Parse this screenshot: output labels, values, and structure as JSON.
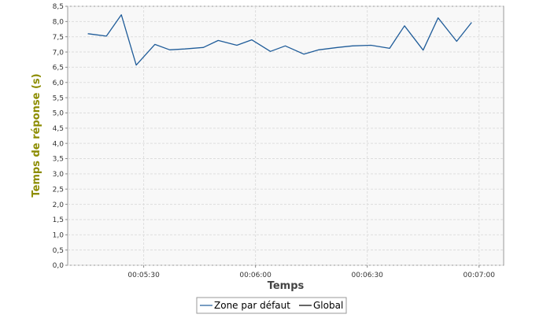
{
  "chart_data": {
    "type": "line",
    "title": "",
    "xlabel": "Temps",
    "ylabel": "Temps de réponse (s)",
    "ylabel_color": "#8c8c00",
    "grid": true,
    "legend_position": "bottom",
    "ylim": [
      0,
      8.5
    ],
    "y_ticks": [
      "0,0",
      "0,5",
      "1,0",
      "1,5",
      "2,0",
      "2,5",
      "3,0",
      "3,5",
      "4,0",
      "4,5",
      "5,0",
      "5,5",
      "6,0",
      "6,5",
      "7,0",
      "7,5",
      "8,0",
      "8,5"
    ],
    "x_ticks": [
      {
        "label": "00:05:30",
        "t": 330
      },
      {
        "label": "00:06:00",
        "t": 360
      },
      {
        "label": "00:06:30",
        "t": 390
      },
      {
        "label": "00:07:00",
        "t": 420
      }
    ],
    "xlim": [
      309.6,
      426.6
    ],
    "x_unit": "seconds elapsed",
    "series": [
      {
        "name": "Zone par défaut",
        "color": "#1f5c99",
        "x": [
          315,
          320,
          324,
          328,
          333,
          337,
          341,
          346,
          350,
          355,
          359,
          364,
          368,
          373,
          377,
          382,
          386,
          391,
          396,
          400,
          405,
          409,
          414,
          418,
          423
        ],
        "y": [
          7.6,
          7.52,
          8.22,
          6.57,
          7.25,
          7.07,
          7.1,
          7.15,
          7.38,
          7.22,
          7.4,
          7.02,
          7.2,
          6.93,
          7.07,
          7.15,
          7.2,
          7.22,
          7.12,
          7.86,
          7.06,
          8.12,
          7.35,
          7.97,
          null
        ]
      },
      {
        "name": "Global",
        "color": "#000000",
        "x": [],
        "y": []
      }
    ]
  }
}
